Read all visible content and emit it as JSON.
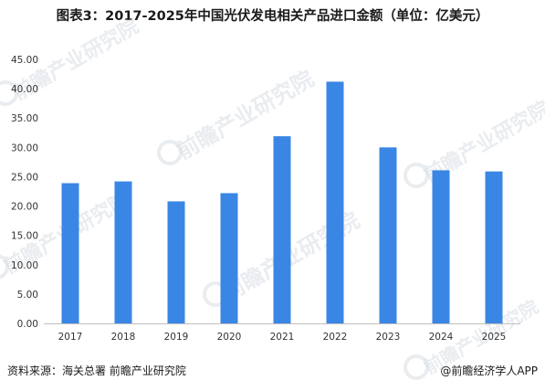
{
  "title": "图表3：2017-2025年中国光伏发电相关产品进口金额（单位：亿美元）",
  "footer": {
    "source": "资料来源：海关总署  前瞻产业研究院",
    "brand": "@前瞻经济学人APP"
  },
  "watermark": {
    "text": "前瞻产业研究院",
    "icon": "qianzhan-logo-icon"
  },
  "colors": {
    "bar": "#3a86e4",
    "axis": "#bfbfbf",
    "text": "#333333"
  },
  "chart_data": {
    "type": "bar",
    "title": "图表3：2017-2025年中国光伏发电相关产品进口金额（单位：亿美元）",
    "categories": [
      "2017",
      "2018",
      "2019",
      "2020",
      "2021",
      "2022",
      "2023",
      "2024",
      "2025"
    ],
    "values": [
      23.9,
      24.2,
      20.8,
      22.2,
      31.9,
      41.2,
      30.0,
      26.1,
      25.9
    ],
    "ylim": [
      0,
      45
    ],
    "yticks": [
      "0.00",
      "5.00",
      "10.00",
      "15.00",
      "20.00",
      "25.00",
      "30.00",
      "35.00",
      "40.00",
      "45.00"
    ],
    "xlabel": "",
    "ylabel": "",
    "grid": false,
    "legend": false
  }
}
